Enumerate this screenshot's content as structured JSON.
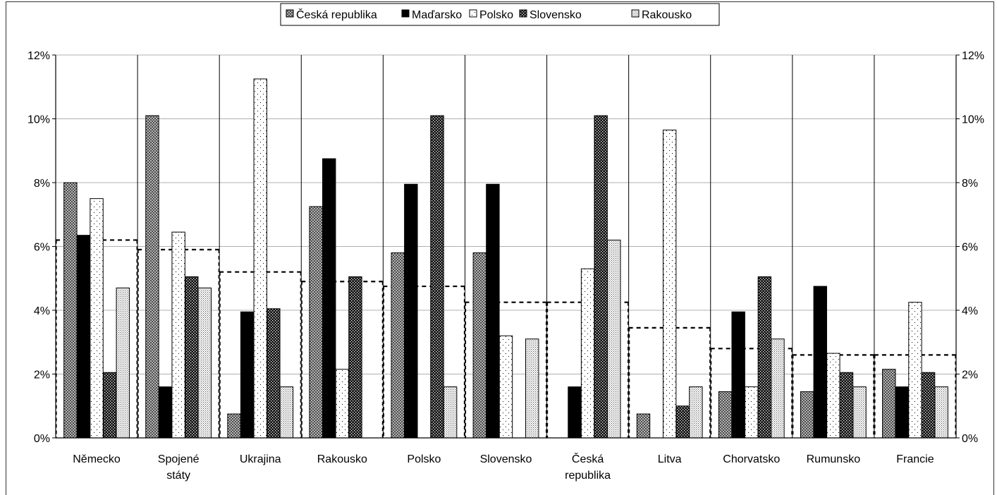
{
  "chart_data": {
    "type": "bar",
    "categories": [
      [
        "Německo"
      ],
      [
        "Spojené",
        "státy"
      ],
      [
        "Ukrajina"
      ],
      [
        "Rakousko"
      ],
      [
        "Polsko"
      ],
      [
        "Slovensko"
      ],
      [
        "Česká",
        "republika"
      ],
      [
        "Litva"
      ],
      [
        "Chorvatsko"
      ],
      [
        "Rumunsko"
      ],
      [
        "Francie"
      ]
    ],
    "series": [
      {
        "name": "Česká republika",
        "pattern": "crosshatch",
        "values": [
          8.0,
          10.1,
          0.75,
          7.25,
          5.8,
          5.8,
          0.0,
          0.75,
          1.45,
          1.45,
          2.15
        ]
      },
      {
        "name": "Maďarsko",
        "pattern": "solid-black",
        "values": [
          6.35,
          1.6,
          3.95,
          8.75,
          7.95,
          7.95,
          1.6,
          0.0,
          3.95,
          4.75,
          1.6
        ]
      },
      {
        "name": "Polsko",
        "pattern": "sparse-dots",
        "values": [
          7.5,
          6.45,
          11.25,
          2.15,
          0.0,
          3.2,
          5.3,
          9.65,
          1.6,
          2.65,
          4.25
        ]
      },
      {
        "name": "Slovensko",
        "pattern": "dark-check",
        "values": [
          2.05,
          5.05,
          4.05,
          5.05,
          10.1,
          0.0,
          10.1,
          1.0,
          5.05,
          2.05,
          2.05
        ]
      },
      {
        "name": "Rakousko",
        "pattern": "dense-dots",
        "values": [
          4.7,
          4.7,
          1.6,
          0.0,
          1.6,
          3.1,
          6.2,
          1.6,
          3.1,
          1.6,
          1.6
        ]
      }
    ],
    "average_line": [
      6.2,
      5.9,
      5.2,
      4.9,
      4.75,
      4.25,
      4.25,
      3.45,
      2.8,
      2.6,
      2.6
    ],
    "y_ticks": [
      "0%",
      "2%",
      "4%",
      "6%",
      "8%",
      "10%",
      "12%"
    ],
    "ylim": [
      0,
      12
    ],
    "grid": true,
    "legend_position": "top-center",
    "colors": {
      "axis": "#000000",
      "grid": "#b0b0b0",
      "bar_outline": "#000000",
      "dashed_line": "#000000"
    }
  }
}
